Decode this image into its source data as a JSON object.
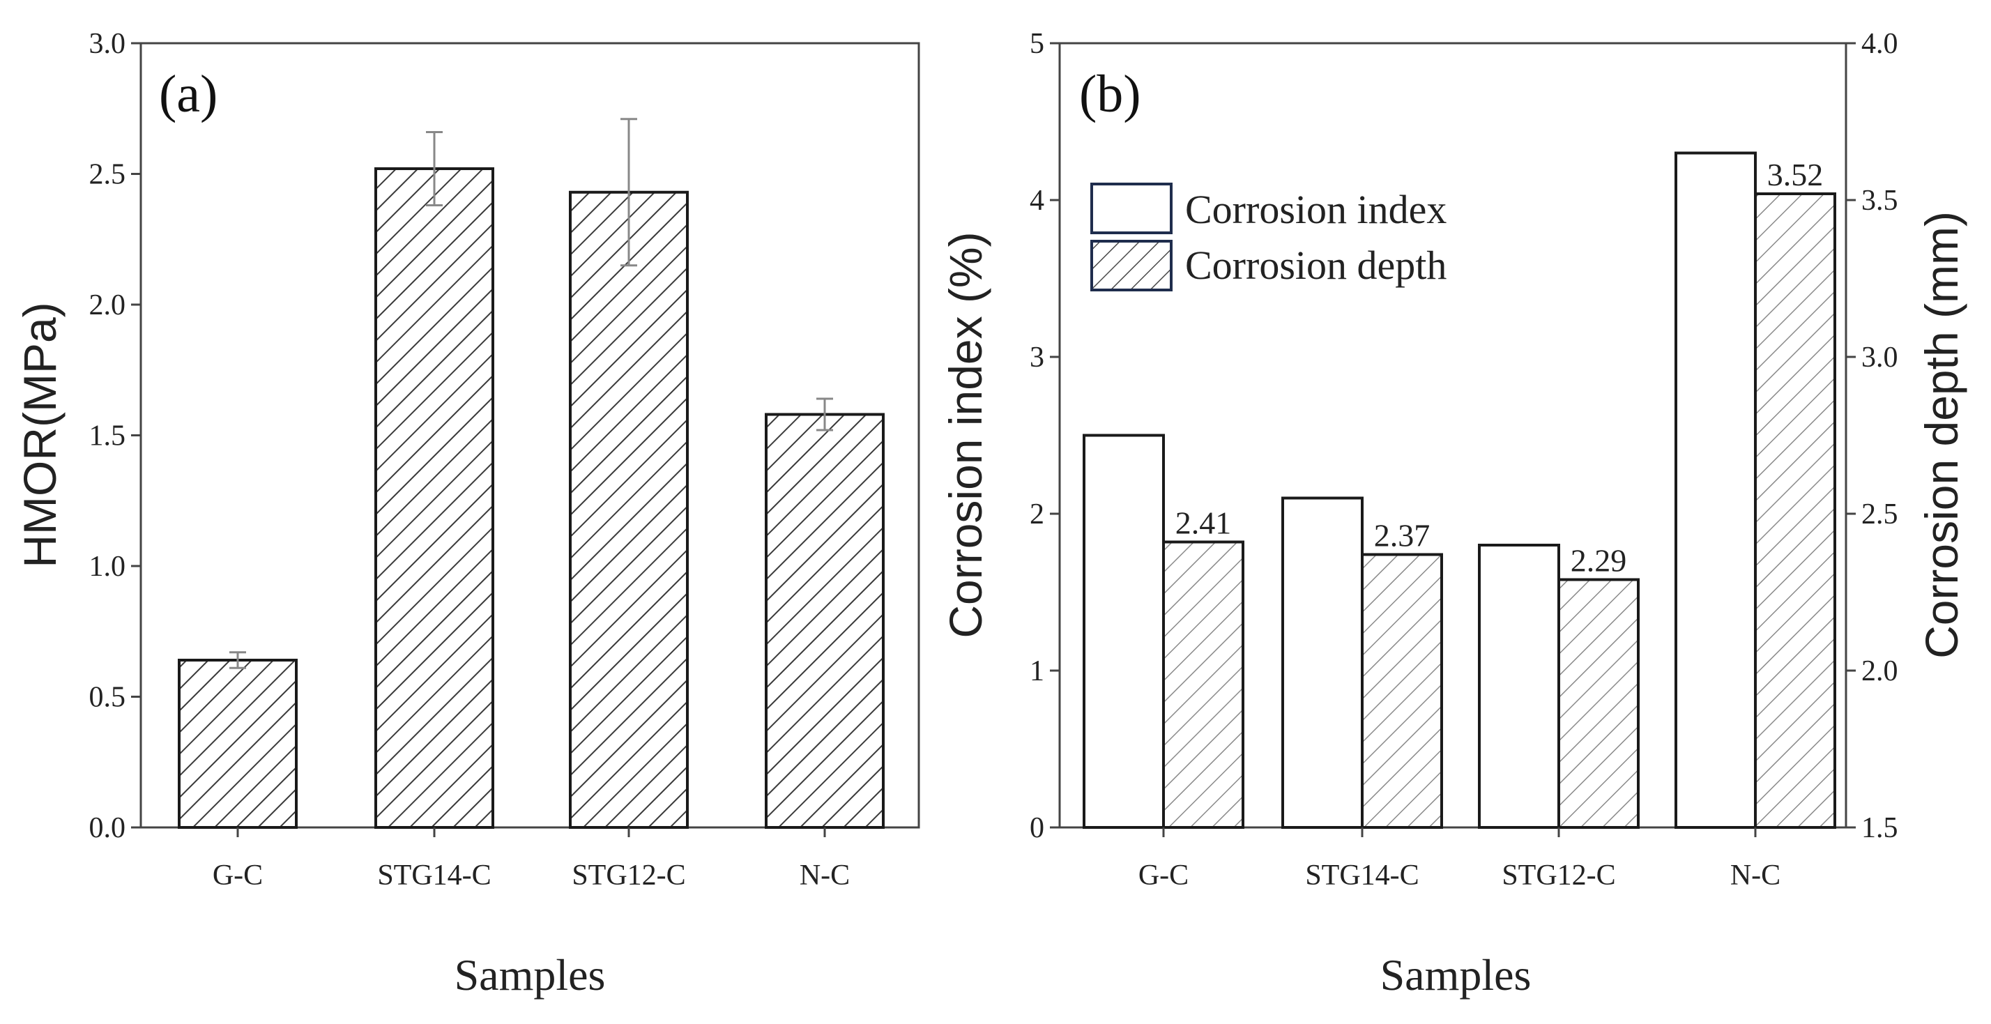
{
  "chart_data": [
    {
      "panel": "(a)",
      "type": "bar",
      "categories": [
        "G-C",
        "STG14-C",
        "STG12-C",
        "N-C"
      ],
      "values": [
        0.64,
        2.52,
        2.43,
        1.58
      ],
      "errors": [
        0.03,
        0.14,
        0.28,
        0.06
      ],
      "ylabel": "HMOR(MPa)",
      "xlabel": "Samples",
      "ylim": [
        0,
        3.0
      ],
      "yticks": [
        "0.0",
        "0.5",
        "1.0",
        "1.5",
        "2.0",
        "2.5",
        "3.0"
      ],
      "grid": false
    },
    {
      "panel": "(b)",
      "type": "bar",
      "categories": [
        "G-C",
        "STG14-C",
        "STG12-C",
        "N-C"
      ],
      "xlabel": "Samples",
      "series": [
        {
          "name": "Corrosion index",
          "axis": "left",
          "values": [
            2.5,
            2.1,
            1.8,
            4.3
          ]
        },
        {
          "name": "Corrosion depth",
          "axis": "right",
          "values": [
            2.41,
            2.37,
            2.29,
            3.52
          ],
          "labels": [
            "2.41",
            "2.37",
            "2.29",
            "3.52"
          ]
        }
      ],
      "ylabel": "Corrosion index (%)",
      "ylim": [
        0,
        5
      ],
      "yticks": [
        "0",
        "1",
        "2",
        "3",
        "4",
        "5"
      ],
      "y2label": "Corrosion depth (mm)",
      "y2lim": [
        1.5,
        4.0
      ],
      "y2ticks": [
        "1.5",
        "2.0",
        "2.5",
        "3.0",
        "3.5",
        "4.0"
      ],
      "legend": "top-left",
      "grid": false
    }
  ],
  "colors": {
    "axis": "#444444",
    "bar_outline": "#1a1a1a",
    "hatch_a": "#3a3a3a",
    "hatch_b": "#8a8a8a",
    "legend_border": "#1f2d4d",
    "errorbar": "#888888"
  }
}
